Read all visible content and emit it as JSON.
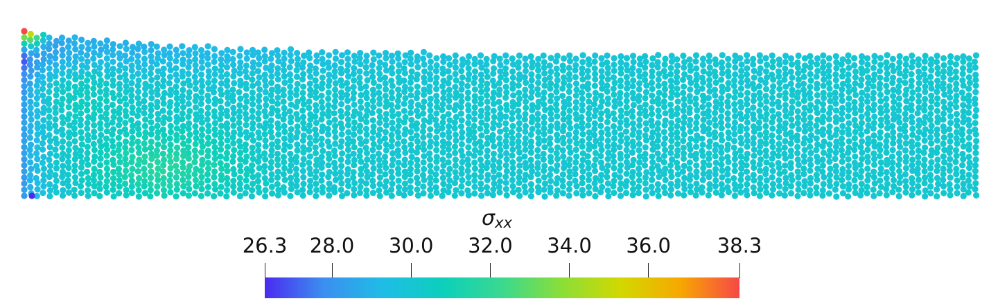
{
  "colorbar": {
    "title_symbol": "σ",
    "title_subscript": "xx",
    "min": 26.3,
    "max": 38.3,
    "ticks": [
      {
        "value": 26.3,
        "label": "26.3"
      },
      {
        "value": 28.0,
        "label": "28.0"
      },
      {
        "value": 30.0,
        "label": "30.0"
      },
      {
        "value": 32.0,
        "label": "32.0"
      },
      {
        "value": 34.0,
        "label": "34.0"
      },
      {
        "value": 36.0,
        "label": "36.0"
      },
      {
        "value": 38.3,
        "label": "38.3"
      }
    ],
    "colormap": [
      "#4a2bf0",
      "#3c8ff0",
      "#1fbde6",
      "#0ccfbc",
      "#3ad98f",
      "#8bde38",
      "#d2d800",
      "#f7a800",
      "#f74848"
    ]
  }
}
